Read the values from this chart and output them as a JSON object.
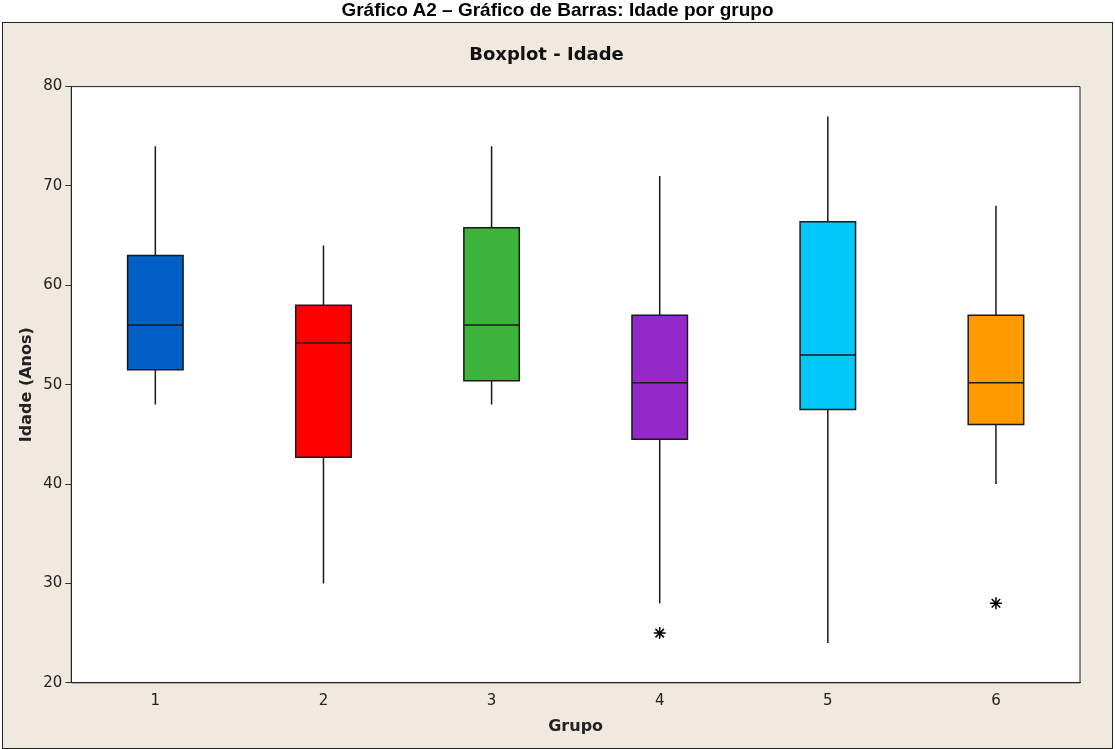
{
  "chart_data": {
    "type": "box",
    "title": "Gráfico A2 – Gráfico de Barras: Idade por grupo",
    "subtitle": "Boxplot - Idade",
    "xlabel": "Grupo",
    "ylabel": "Idade (Anos)",
    "categories": [
      "1",
      "2",
      "3",
      "4",
      "5",
      "6"
    ],
    "colors": [
      "#0060c8",
      "#ff0000",
      "#3cb43c",
      "#9428c8",
      "#00c8f8",
      "#ff9900"
    ],
    "boxes": [
      {
        "low": 48,
        "q1": 51.5,
        "median": 56,
        "q3": 63,
        "high": 74
      },
      {
        "low": 30,
        "q1": 42.7,
        "median": 54.2,
        "q3": 58,
        "high": 64
      },
      {
        "low": 48,
        "q1": 50.4,
        "median": 56,
        "q3": 65.8,
        "high": 74
      },
      {
        "low": 28,
        "q1": 44.5,
        "median": 50.2,
        "q3": 57,
        "high": 71,
        "outliers": [
          25
        ]
      },
      {
        "low": 24,
        "q1": 47.5,
        "median": 53,
        "q3": 66.4,
        "high": 77
      },
      {
        "low": 40,
        "q1": 46,
        "median": 50.2,
        "q3": 57,
        "high": 68,
        "outliers": [
          28
        ]
      }
    ],
    "ylim": [
      20,
      80
    ],
    "yticks": [
      20,
      30,
      40,
      50,
      60,
      70,
      80
    ],
    "grid": false,
    "legend": false,
    "marker": "star"
  }
}
